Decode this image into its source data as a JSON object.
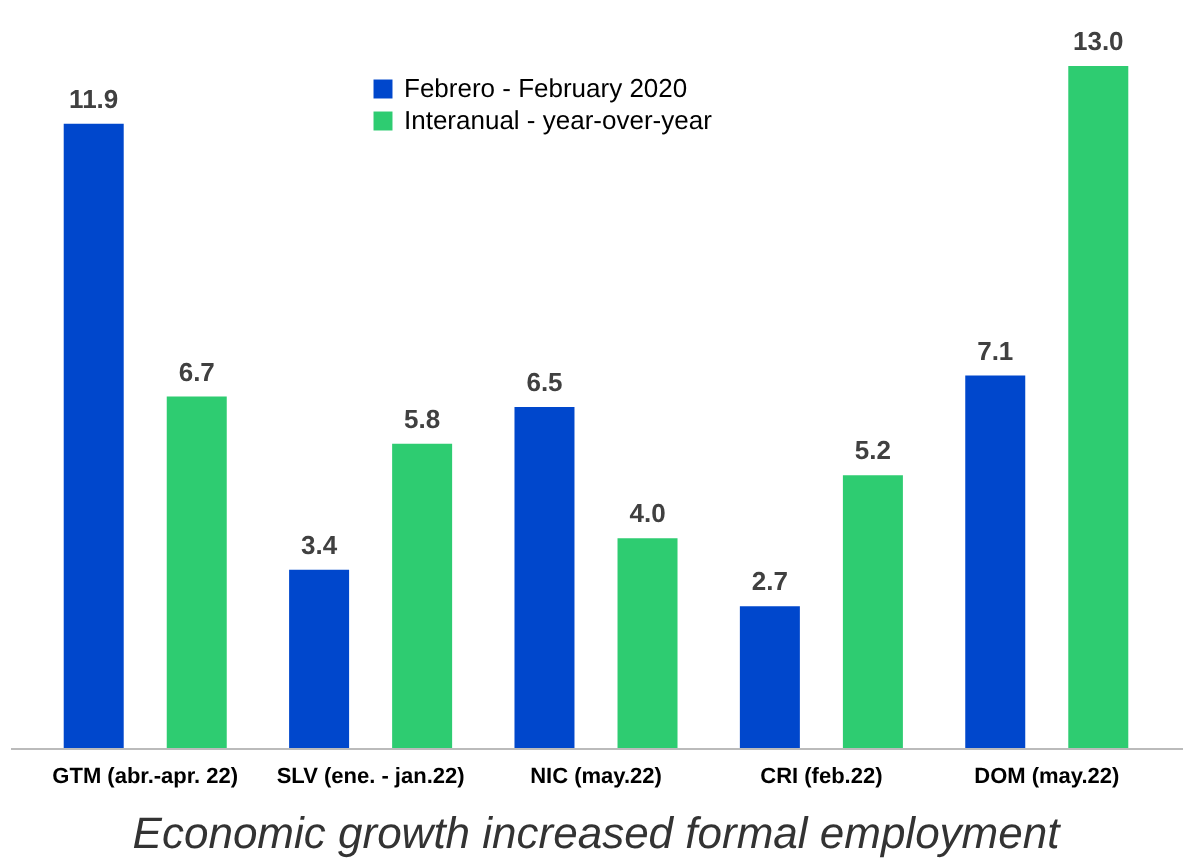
{
  "chart_data": {
    "type": "bar",
    "categories": [
      "GTM (abr.-apr. 22)",
      "SLV (ene. - jan.22)",
      "NIC (may.22)",
      "CRI (feb.22)",
      "DOM (may.22)"
    ],
    "series": [
      {
        "name": "Febrero - February 2020",
        "color": "#0047cc",
        "values": [
          11.9,
          3.4,
          6.5,
          2.7,
          7.1
        ],
        "value_labels": [
          "11.9",
          "3.4",
          "6.5",
          "2.7",
          "7.1"
        ]
      },
      {
        "name": "Interanual - year-over-year",
        "color": "#2ecc71",
        "values": [
          6.7,
          5.8,
          4,
          5.2,
          13
        ],
        "value_labels": [
          "6.7",
          "5.8",
          "4.0",
          "5.2",
          "13.0"
        ]
      }
    ],
    "legend": "top",
    "grid": false,
    "annotations": [
      "Economic growth increased formal employment"
    ]
  }
}
